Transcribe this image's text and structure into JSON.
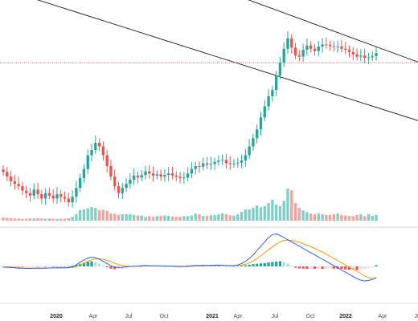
{
  "chart_data": {
    "type": "candlestick",
    "colors": {
      "up": "#26a69a",
      "down": "#ef5350",
      "vol_up": "#7fcfc4",
      "vol_down": "#f3a3a0",
      "macd_line": "#2962ff",
      "signal_line": "#ff9800",
      "trend_line": "#1a1a1a",
      "horizontal_level": "#ef5350"
    },
    "x_axis": {
      "ticks": [
        {
          "label": "2020",
          "bold": true
        },
        {
          "label": "Apr",
          "bold": false
        },
        {
          "label": "Jul",
          "bold": false
        },
        {
          "label": "Oct",
          "bold": false
        },
        {
          "label": "2021",
          "bold": true
        },
        {
          "label": "Apr",
          "bold": false
        },
        {
          "label": "Jul",
          "bold": false
        },
        {
          "label": "Oct",
          "bold": false
        },
        {
          "label": "2022",
          "bold": true
        },
        {
          "label": "Apr",
          "bold": false
        },
        {
          "label": "Jul",
          "bold": false
        }
      ],
      "tick_dates": [
        "2020-01-01",
        "2020-04-01",
        "2020-07-01",
        "2020-10-01",
        "2021-01-01",
        "2021-04-01",
        "2021-07-01",
        "2021-10-01",
        "2022-01-01",
        "2022-04-01",
        "2022-07-01"
      ]
    },
    "price_close": [
      0.41,
      0.395,
      0.38,
      0.372,
      0.365,
      0.352,
      0.345,
      0.338,
      0.355,
      0.342,
      0.33,
      0.345,
      0.338,
      0.33,
      0.342,
      0.335,
      0.33,
      0.32,
      0.335,
      0.36,
      0.39,
      0.42,
      0.47,
      0.49,
      0.52,
      0.505,
      0.47,
      0.43,
      0.395,
      0.365,
      0.345,
      0.36,
      0.372,
      0.385,
      0.398,
      0.392,
      0.4,
      0.412,
      0.405,
      0.398,
      0.402,
      0.395,
      0.4,
      0.405,
      0.398,
      0.394,
      0.39,
      0.392,
      0.405,
      0.42,
      0.43,
      0.428,
      0.44,
      0.435,
      0.438,
      0.445,
      0.45,
      0.452,
      0.44,
      0.438,
      0.44,
      0.442,
      0.45,
      0.47,
      0.505,
      0.54,
      0.58,
      0.64,
      0.7,
      0.76,
      0.8,
      0.9,
      1.0,
      1.12,
      1.22,
      1.13,
      1.06,
      1.05,
      1.11,
      1.15,
      1.12,
      1.1,
      1.14,
      1.16,
      1.155,
      1.145,
      1.14,
      1.142,
      1.12,
      1.11,
      1.09,
      1.07,
      1.05,
      1.06,
      1.04,
      1.045,
      1.055,
      1.082
    ],
    "volume": [
      0.1,
      0.09,
      0.08,
      0.07,
      0.07,
      0.06,
      0.06,
      0.07,
      0.07,
      0.08,
      0.07,
      0.06,
      0.07,
      0.06,
      0.05,
      0.06,
      0.06,
      0.08,
      0.12,
      0.2,
      0.33,
      0.35,
      0.38,
      0.42,
      0.4,
      0.33,
      0.34,
      0.3,
      0.22,
      0.22,
      0.18,
      0.2,
      0.2,
      0.2,
      0.18,
      0.16,
      0.16,
      0.12,
      0.14,
      0.12,
      0.14,
      0.15,
      0.16,
      0.15,
      0.13,
      0.12,
      0.12,
      0.14,
      0.14,
      0.16,
      0.22,
      0.2,
      0.15,
      0.15,
      0.17,
      0.18,
      0.2,
      0.23,
      0.2,
      0.17,
      0.16,
      0.2,
      0.28,
      0.35,
      0.35,
      0.4,
      0.48,
      0.42,
      0.45,
      0.55,
      0.65,
      0.5,
      0.46,
      0.62,
      1.0,
      0.95,
      0.55,
      0.4,
      0.32,
      0.27,
      0.22,
      0.2,
      0.22,
      0.2,
      0.18,
      0.18,
      0.2,
      0.22,
      0.18,
      0.16,
      0.15,
      0.14,
      0.18,
      0.2,
      0.14,
      0.2,
      0.15,
      0.18
    ],
    "macd_histogram": [
      0.0,
      -0.02,
      -0.03,
      -0.04,
      -0.05,
      -0.06,
      -0.05,
      -0.04,
      -0.02,
      -0.02,
      -0.01,
      -0.02,
      -0.01,
      0.0,
      -0.01,
      -0.01,
      0.0,
      0.02,
      0.08,
      0.18,
      0.32,
      0.45,
      0.58,
      0.65,
      0.55,
      0.35,
      0.12,
      -0.1,
      -0.28,
      -0.35,
      -0.3,
      -0.25,
      -0.18,
      -0.1,
      -0.05,
      -0.02,
      0.02,
      0.06,
      0.05,
      0.04,
      0.03,
      0.02,
      0.03,
      0.02,
      0.01,
      -0.02,
      -0.03,
      -0.02,
      0.0,
      0.03,
      0.06,
      0.05,
      0.06,
      0.05,
      0.05,
      0.06,
      0.07,
      0.06,
      0.03,
      0.01,
      0.02,
      0.04,
      0.1,
      0.15,
      0.22,
      0.28,
      0.32,
      0.38,
      0.42,
      0.5,
      0.55,
      0.6,
      0.65,
      0.55,
      0.35,
      0.1,
      -0.15,
      -0.25,
      -0.28,
      -0.3,
      -0.28,
      -0.3,
      -0.28,
      -0.3,
      -0.27,
      -0.25,
      -0.28,
      -0.3,
      -0.32,
      -0.38,
      -0.42,
      -0.4,
      -0.45,
      -0.35,
      -0.3,
      -0.2,
      -0.1,
      0.15
    ],
    "macd_line": [
      -0.05,
      -0.06,
      -0.08,
      -0.1,
      -0.12,
      -0.13,
      -0.14,
      -0.14,
      -0.13,
      -0.12,
      -0.12,
      -0.11,
      -0.11,
      -0.1,
      -0.1,
      -0.1,
      -0.1,
      -0.08,
      -0.03,
      0.1,
      0.3,
      0.45,
      0.58,
      0.65,
      0.6,
      0.5,
      0.35,
      0.2,
      0.05,
      -0.05,
      -0.08,
      -0.06,
      -0.03,
      0.0,
      0.02,
      0.03,
      0.05,
      0.06,
      0.05,
      0.04,
      0.04,
      0.03,
      0.03,
      0.02,
      0.02,
      0.0,
      -0.01,
      0.0,
      0.02,
      0.05,
      0.07,
      0.07,
      0.08,
      0.08,
      0.08,
      0.09,
      0.1,
      0.09,
      0.06,
      0.05,
      0.06,
      0.1,
      0.2,
      0.35,
      0.55,
      0.8,
      1.1,
      1.4,
      1.7,
      2.0,
      2.2,
      2.25,
      2.15,
      2.0,
      1.85,
      1.7,
      1.55,
      1.4,
      1.25,
      1.1,
      0.95,
      0.8,
      0.65,
      0.5,
      0.35,
      0.2,
      0.05,
      -0.1,
      -0.25,
      -0.4,
      -0.55,
      -0.7,
      -0.85,
      -0.95,
      -1.0,
      -0.98,
      -0.9,
      -0.75
    ],
    "signal_line": [
      -0.04,
      -0.05,
      -0.06,
      -0.08,
      -0.09,
      -0.11,
      -0.12,
      -0.13,
      -0.13,
      -0.13,
      -0.12,
      -0.12,
      -0.11,
      -0.11,
      -0.1,
      -0.1,
      -0.1,
      -0.1,
      -0.08,
      -0.02,
      0.1,
      0.22,
      0.35,
      0.46,
      0.52,
      0.53,
      0.49,
      0.42,
      0.32,
      0.22,
      0.12,
      0.06,
      0.02,
      0.0,
      0.0,
      0.01,
      0.02,
      0.03,
      0.04,
      0.04,
      0.04,
      0.04,
      0.03,
      0.03,
      0.02,
      0.02,
      0.01,
      0.01,
      0.01,
      0.02,
      0.03,
      0.04,
      0.05,
      0.06,
      0.07,
      0.07,
      0.08,
      0.08,
      0.08,
      0.07,
      0.06,
      0.07,
      0.1,
      0.15,
      0.25,
      0.38,
      0.55,
      0.75,
      0.95,
      1.15,
      1.35,
      1.55,
      1.7,
      1.8,
      1.82,
      1.8,
      1.75,
      1.67,
      1.58,
      1.48,
      1.37,
      1.25,
      1.12,
      1.0,
      0.85,
      0.7,
      0.55,
      0.4,
      0.25,
      0.1,
      -0.05,
      -0.2,
      -0.35,
      -0.5,
      -0.65,
      -0.78,
      -0.85,
      -0.82
    ],
    "trend_lines": [
      {
        "x1": -0.02,
        "y1": 3.6,
        "x2": 1.02,
        "y2": 0.98
      },
      {
        "x1": -0.02,
        "y1": 1.88,
        "x2": 1.02,
        "y2": 0.61
      }
    ],
    "horizontal_level": 1.0
  }
}
